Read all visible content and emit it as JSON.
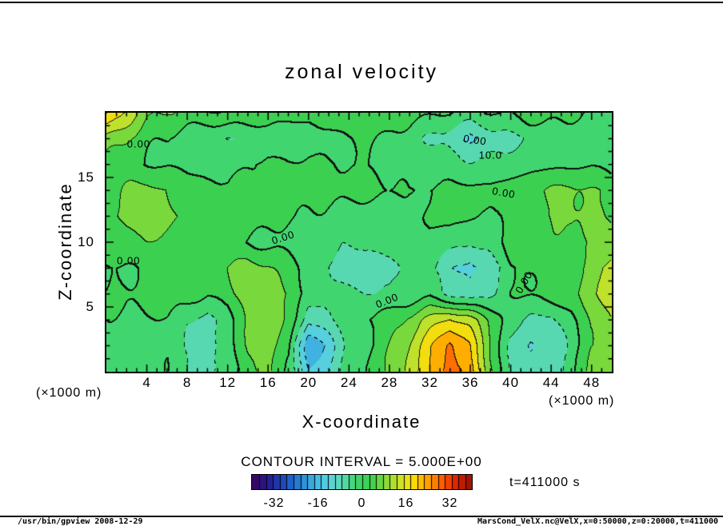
{
  "title": "zonal velocity",
  "axes": {
    "x_label": "X-coordinate",
    "y_label": "Z-coordinate",
    "x_unit_left": "(×1000 m)",
    "x_unit_right": "(×1000 m)",
    "x_ticks": [
      4,
      8,
      12,
      16,
      20,
      24,
      28,
      32,
      36,
      40,
      44,
      48
    ],
    "y_ticks": [
      5,
      10,
      15
    ],
    "x_range": [
      0,
      50
    ],
    "y_range": [
      0,
      20
    ]
  },
  "contour_note": "CONTOUR INTERVAL = 5.000E+00",
  "time_label": "t=411000 s",
  "colorbar": {
    "min": -40,
    "max": 40,
    "ticks": [
      -32,
      -16,
      0,
      16,
      32
    ],
    "quantize_step": 2.5
  },
  "footer": {
    "left": "/usr/bin/gpview  2008-12-29",
    "right": "MarsCond_VelX.nc@VelX,x=0:50000,z=0:20000,t=411000"
  },
  "colors": {
    "frame": "#000000",
    "background": "#ffffff",
    "text": "#000000"
  },
  "chart_data": {
    "type": "heatmap",
    "subtype": "filled-contour",
    "title": "zonal velocity",
    "xlabel": "X-coordinate (×1000 m)",
    "ylabel": "Z-coordinate (×1000 m)",
    "xlim": [
      0,
      50
    ],
    "zlim": [
      0,
      20
    ],
    "contour_interval": 5,
    "units": "m/s",
    "x": [
      0,
      2,
      4,
      6,
      8,
      10,
      12,
      14,
      16,
      18,
      20,
      22,
      24,
      26,
      28,
      30,
      32,
      34,
      36,
      38,
      40,
      42,
      44,
      46,
      48,
      50
    ],
    "z": [
      0,
      2,
      4,
      6,
      8,
      10,
      12,
      14,
      16,
      18,
      20
    ],
    "grid": [
      [
        -3,
        -4,
        -2,
        0,
        -5,
        -7,
        -2,
        4,
        6,
        0,
        -16,
        -10,
        -3,
        1,
        5,
        12,
        20,
        28,
        24,
        6,
        -5,
        -9,
        -8,
        -3,
        6,
        9
      ],
      [
        -2,
        -4,
        -3,
        -1,
        -6,
        -8,
        -3,
        6,
        8,
        2,
        -20,
        -12,
        -4,
        0,
        4,
        10,
        18,
        26,
        20,
        5,
        -6,
        -10,
        -9,
        -4,
        5,
        8
      ],
      [
        -1,
        -2,
        -1,
        0,
        -4,
        -6,
        -2,
        6,
        9,
        4,
        -9,
        -6,
        -2,
        1,
        3,
        7,
        12,
        16,
        12,
        4,
        -3,
        -7,
        -6,
        -2,
        6,
        10
      ],
      [
        0,
        1,
        2,
        3,
        2,
        0,
        3,
        8,
        9,
        5,
        -2,
        -3,
        -4,
        -5,
        -6,
        -4,
        -2,
        -6,
        -9,
        -5,
        0,
        1,
        2,
        3,
        8,
        13
      ],
      [
        -1,
        0,
        2,
        3,
        2,
        3,
        5,
        7,
        5,
        2,
        -2,
        -5,
        -7,
        -8,
        -6,
        -3,
        -4,
        -9,
        -13,
        -8,
        -2,
        1,
        3,
        4,
        7,
        12
      ],
      [
        2,
        3,
        4,
        3,
        2,
        2,
        1,
        0,
        -1,
        -2,
        -4,
        -5,
        -5,
        -4,
        -3,
        -2,
        -1,
        -2,
        -4,
        -2,
        2,
        3,
        3,
        3,
        5,
        8
      ],
      [
        4,
        7,
        9,
        7,
        4,
        3,
        2,
        3,
        2,
        1,
        0,
        -1,
        -2,
        -3,
        -2,
        -1,
        0,
        1,
        0,
        -1,
        1,
        3,
        5,
        7,
        6,
        4
      ],
      [
        3,
        5,
        6,
        5,
        3,
        2,
        1,
        2,
        3,
        2,
        1,
        1,
        2,
        2,
        1,
        0,
        1,
        2,
        2,
        1,
        2,
        3,
        5,
        6,
        5,
        4
      ],
      [
        4,
        2,
        0,
        -1,
        -2,
        -2,
        -1,
        0,
        1,
        1,
        2,
        1,
        0,
        -1,
        -2,
        -3,
        -2,
        -3,
        -4,
        -3,
        -2,
        -1,
        -1,
        -1,
        -1,
        -2
      ],
      [
        8,
        5,
        2,
        0,
        -2,
        -4,
        -5,
        -4,
        -3,
        -4,
        -3,
        -2,
        0,
        1,
        0,
        -2,
        -5,
        -8,
        -11,
        -9,
        -7,
        -5,
        -3,
        -2,
        -3,
        -4
      ],
      [
        21,
        13,
        6,
        4,
        3,
        4,
        5,
        4,
        3,
        2,
        1,
        2,
        3,
        4,
        3,
        2,
        1,
        0,
        -1,
        0,
        1,
        2,
        1,
        0,
        -1,
        -2
      ]
    ],
    "colormap": [
      [
        -40,
        "#38005c"
      ],
      [
        -33,
        "#20269c"
      ],
      [
        -27,
        "#1e58c8"
      ],
      [
        -21,
        "#2f94d8"
      ],
      [
        -15,
        "#4ac8e8"
      ],
      [
        -10,
        "#5fd8d0"
      ],
      [
        -6,
        "#52d89e"
      ],
      [
        -2,
        "#3ed468"
      ],
      [
        3,
        "#3ccf4e"
      ],
      [
        7,
        "#72d73e"
      ],
      [
        11,
        "#abdf30"
      ],
      [
        15,
        "#dfe424"
      ],
      [
        19,
        "#fed800"
      ],
      [
        24,
        "#ff9c00"
      ],
      [
        29,
        "#ff5a00"
      ],
      [
        34,
        "#dc2300"
      ],
      [
        40,
        "#8c1105"
      ]
    ],
    "contour_labels": [
      {
        "text": "0.00",
        "x": 3.2,
        "z": 17.6,
        "rot": 0
      },
      {
        "text": "0.00",
        "x": 36.5,
        "z": 17.9,
        "rot": 8
      },
      {
        "text": "10.0",
        "x": 38.0,
        "z": 16.7,
        "rot": 0
      },
      {
        "text": "0.00",
        "x": 39.3,
        "z": 13.8,
        "rot": 10
      },
      {
        "text": "0.00",
        "x": 17.5,
        "z": 10.4,
        "rot": -18
      },
      {
        "text": "0.00",
        "x": 2.2,
        "z": 8.6,
        "rot": 0
      },
      {
        "text": "0.00",
        "x": 27.8,
        "z": 5.5,
        "rot": -22
      },
      {
        "text": "0.00",
        "x": 41.3,
        "z": 6.9,
        "rot": -60
      }
    ]
  }
}
